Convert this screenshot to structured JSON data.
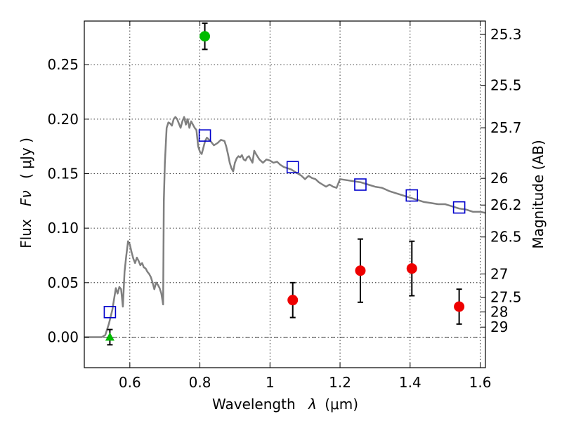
{
  "chart_data": {
    "type": "scatter",
    "xlabel_text": "Wavelength",
    "xlabel_symbol": "λ",
    "xlabel_unit": "(μm)",
    "ylabel_text": "Flux",
    "ylabel_symbol": "Fν",
    "ylabel_unit": "( μJy )",
    "y2label": "Magnitude (AB)",
    "xlim": [
      0.47,
      1.615
    ],
    "ylim": [
      -0.028,
      0.29
    ],
    "grid": true,
    "xticks": [
      {
        "value": 0.6,
        "label": "0.6"
      },
      {
        "value": 0.8,
        "label": "0.8"
      },
      {
        "value": 1.0,
        "label": "1"
      },
      {
        "value": 1.2,
        "label": "1.2"
      },
      {
        "value": 1.4,
        "label": "1.4"
      },
      {
        "value": 1.6,
        "label": "1.6"
      }
    ],
    "yticks": [
      {
        "value": 0.0,
        "label": "0.00"
      },
      {
        "value": 0.05,
        "label": "0.05"
      },
      {
        "value": 0.1,
        "label": "0.10"
      },
      {
        "value": 0.15,
        "label": "0.15"
      },
      {
        "value": 0.2,
        "label": "0.20"
      },
      {
        "value": 0.25,
        "label": "0.25"
      }
    ],
    "y2ticks": [
      {
        "label": "25.3",
        "flux": 0.2777
      },
      {
        "label": "25.5",
        "flux": 0.231
      },
      {
        "label": "25.7",
        "flux": 0.1921
      },
      {
        "label": "26",
        "flux": 0.1457
      },
      {
        "label": "26.2",
        "flux": 0.1212
      },
      {
        "label": "26.5",
        "flux": 0.0919
      },
      {
        "label": "27",
        "flux": 0.058
      },
      {
        "label": "27.5",
        "flux": 0.0366
      },
      {
        "label": "28",
        "flux": 0.0231
      },
      {
        "label": "29",
        "flux": 0.0092
      }
    ],
    "sed_model": {
      "color": "#808080",
      "points": [
        [
          0.47,
          0.0
        ],
        [
          0.5,
          0.0
        ],
        [
          0.52,
          0.0
        ],
        [
          0.53,
          0.002
        ],
        [
          0.54,
          0.012
        ],
        [
          0.55,
          0.025
        ],
        [
          0.555,
          0.035
        ],
        [
          0.56,
          0.045
        ],
        [
          0.565,
          0.04
        ],
        [
          0.57,
          0.046
        ],
        [
          0.575,
          0.044
        ],
        [
          0.58,
          0.028
        ],
        [
          0.585,
          0.06
        ],
        [
          0.59,
          0.075
        ],
        [
          0.595,
          0.088
        ],
        [
          0.6,
          0.085
        ],
        [
          0.605,
          0.078
        ],
        [
          0.61,
          0.072
        ],
        [
          0.615,
          0.068
        ],
        [
          0.62,
          0.073
        ],
        [
          0.625,
          0.07
        ],
        [
          0.63,
          0.066
        ],
        [
          0.635,
          0.068
        ],
        [
          0.64,
          0.064
        ],
        [
          0.645,
          0.063
        ],
        [
          0.65,
          0.06
        ],
        [
          0.655,
          0.058
        ],
        [
          0.66,
          0.055
        ],
        [
          0.665,
          0.05
        ],
        [
          0.67,
          0.044
        ],
        [
          0.675,
          0.05
        ],
        [
          0.68,
          0.048
        ],
        [
          0.685,
          0.045
        ],
        [
          0.69,
          0.04
        ],
        [
          0.695,
          0.03
        ],
        [
          0.697,
          0.125
        ],
        [
          0.7,
          0.16
        ],
        [
          0.705,
          0.192
        ],
        [
          0.71,
          0.197
        ],
        [
          0.715,
          0.196
        ],
        [
          0.72,
          0.194
        ],
        [
          0.725,
          0.2
        ],
        [
          0.73,
          0.202
        ],
        [
          0.735,
          0.2
        ],
        [
          0.74,
          0.196
        ],
        [
          0.745,
          0.192
        ],
        [
          0.75,
          0.198
        ],
        [
          0.755,
          0.202
        ],
        [
          0.76,
          0.195
        ],
        [
          0.765,
          0.2
        ],
        [
          0.77,
          0.192
        ],
        [
          0.775,
          0.198
        ],
        [
          0.78,
          0.195
        ],
        [
          0.785,
          0.192
        ],
        [
          0.79,
          0.19
        ],
        [
          0.795,
          0.175
        ],
        [
          0.8,
          0.17
        ],
        [
          0.805,
          0.168
        ],
        [
          0.81,
          0.174
        ],
        [
          0.815,
          0.18
        ],
        [
          0.82,
          0.183
        ],
        [
          0.83,
          0.18
        ],
        [
          0.84,
          0.176
        ],
        [
          0.85,
          0.178
        ],
        [
          0.86,
          0.181
        ],
        [
          0.87,
          0.18
        ],
        [
          0.875,
          0.175
        ],
        [
          0.88,
          0.168
        ],
        [
          0.885,
          0.16
        ],
        [
          0.89,
          0.155
        ],
        [
          0.895,
          0.152
        ],
        [
          0.9,
          0.16
        ],
        [
          0.905,
          0.164
        ],
        [
          0.91,
          0.166
        ],
        [
          0.915,
          0.165
        ],
        [
          0.92,
          0.167
        ],
        [
          0.925,
          0.163
        ],
        [
          0.93,
          0.162
        ],
        [
          0.935,
          0.165
        ],
        [
          0.94,
          0.166
        ],
        [
          0.945,
          0.163
        ],
        [
          0.95,
          0.16
        ],
        [
          0.955,
          0.171
        ],
        [
          0.96,
          0.168
        ],
        [
          0.97,
          0.163
        ],
        [
          0.98,
          0.16
        ],
        [
          0.99,
          0.163
        ],
        [
          1.0,
          0.162
        ],
        [
          1.01,
          0.16
        ],
        [
          1.02,
          0.161
        ],
        [
          1.03,
          0.158
        ],
        [
          1.04,
          0.156
        ],
        [
          1.05,
          0.155
        ],
        [
          1.06,
          0.154
        ],
        [
          1.07,
          0.152
        ],
        [
          1.08,
          0.15
        ],
        [
          1.09,
          0.148
        ],
        [
          1.1,
          0.145
        ],
        [
          1.11,
          0.148
        ],
        [
          1.12,
          0.146
        ],
        [
          1.13,
          0.145
        ],
        [
          1.14,
          0.142
        ],
        [
          1.15,
          0.14
        ],
        [
          1.16,
          0.138
        ],
        [
          1.17,
          0.14
        ],
        [
          1.18,
          0.138
        ],
        [
          1.19,
          0.137
        ],
        [
          1.2,
          0.145
        ],
        [
          1.22,
          0.144
        ],
        [
          1.24,
          0.143
        ],
        [
          1.26,
          0.142
        ],
        [
          1.28,
          0.14
        ],
        [
          1.3,
          0.138
        ],
        [
          1.32,
          0.137
        ],
        [
          1.34,
          0.134
        ],
        [
          1.36,
          0.132
        ],
        [
          1.38,
          0.13
        ],
        [
          1.4,
          0.128
        ],
        [
          1.42,
          0.126
        ],
        [
          1.44,
          0.124
        ],
        [
          1.46,
          0.123
        ],
        [
          1.48,
          0.122
        ],
        [
          1.5,
          0.122
        ],
        [
          1.52,
          0.12
        ],
        [
          1.54,
          0.118
        ],
        [
          1.56,
          0.117
        ],
        [
          1.58,
          0.115
        ],
        [
          1.6,
          0.115
        ],
        [
          1.615,
          0.114
        ]
      ]
    },
    "model_photometry": {
      "marker": "square",
      "color": "#0000cc",
      "points": [
        {
          "x": 0.543,
          "y": 0.023
        },
        {
          "x": 0.814,
          "y": 0.185
        },
        {
          "x": 1.065,
          "y": 0.156
        },
        {
          "x": 1.258,
          "y": 0.14
        },
        {
          "x": 1.405,
          "y": 0.13
        },
        {
          "x": 1.54,
          "y": 0.119
        }
      ]
    },
    "observed_detections": {
      "marker": "circle",
      "color": "#ee0000",
      "points": [
        {
          "x": 1.065,
          "y": 0.034,
          "yerr": 0.016
        },
        {
          "x": 1.258,
          "y": 0.061,
          "yerr": 0.029
        },
        {
          "x": 1.405,
          "y": 0.063,
          "yerr": 0.025
        },
        {
          "x": 1.54,
          "y": 0.028,
          "yerr": 0.016
        }
      ]
    },
    "green_detection": {
      "marker": "circle",
      "color": "#00bb00",
      "points": [
        {
          "x": 0.814,
          "y": 0.276,
          "yerr": 0.012
        }
      ]
    },
    "green_upper_limit": {
      "marker": "triangle",
      "color": "#00bb00",
      "points": [
        {
          "x": 0.543,
          "y": 0.0,
          "yerr": 0.007
        }
      ]
    },
    "zero_line": {
      "y": 0.0
    }
  }
}
